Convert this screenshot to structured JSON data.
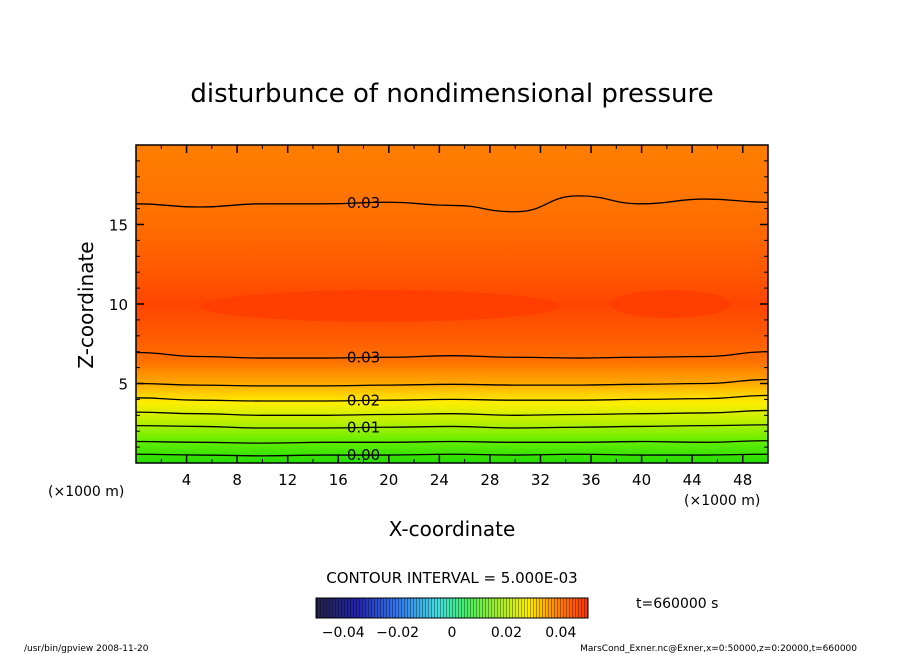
{
  "chart_data": {
    "type": "heatmap",
    "title": "disturbunce of nondimensional pressure",
    "xlabel": "X-coordinate",
    "ylabel": "Z-coordinate",
    "x_unit": "(×1000 m)",
    "y_unit": "(×1000 m)",
    "xlim": [
      0,
      50
    ],
    "ylim": [
      0,
      20
    ],
    "x_ticks": [
      4,
      8,
      12,
      16,
      20,
      24,
      28,
      32,
      36,
      40,
      44,
      48
    ],
    "y_ticks": [
      5,
      10,
      15
    ],
    "contour_interval_text": "CONTOUR INTERVAL = 5.000E-03",
    "time_text": "t=660000 s",
    "colorbar": {
      "ticks": [
        "−0.04",
        "−0.02",
        "0",
        "0.02",
        "0.04"
      ],
      "range": [
        -0.05,
        0.05
      ]
    },
    "contours": [
      {
        "level": 0.0,
        "label": "0.00",
        "z": [
          0.55,
          0.5,
          0.45,
          0.5,
          0.5,
          0.55,
          0.5,
          0.55,
          0.5,
          0.5,
          0.55
        ]
      },
      {
        "level": 0.005,
        "label": "",
        "z": [
          1.35,
          1.3,
          1.25,
          1.3,
          1.3,
          1.35,
          1.3,
          1.3,
          1.35,
          1.3,
          1.4
        ]
      },
      {
        "level": 0.01,
        "label": "0.01",
        "z": [
          2.35,
          2.3,
          2.2,
          2.2,
          2.25,
          2.3,
          2.2,
          2.25,
          2.3,
          2.35,
          2.4
        ]
      },
      {
        "level": 0.015,
        "label": "",
        "z": [
          3.2,
          3.1,
          3.0,
          3.0,
          3.05,
          3.1,
          3.0,
          3.05,
          3.1,
          3.15,
          3.3
        ]
      },
      {
        "level": 0.02,
        "label": "0.02",
        "z": [
          4.1,
          3.95,
          3.9,
          3.9,
          3.95,
          4.0,
          3.95,
          3.95,
          4.0,
          4.05,
          4.25
        ]
      },
      {
        "level": 0.025,
        "label": "",
        "z": [
          5.0,
          4.9,
          4.85,
          4.85,
          4.9,
          4.95,
          4.9,
          4.9,
          4.95,
          5.0,
          5.25
        ]
      },
      {
        "level": 0.03,
        "label": "0.03",
        "z": [
          6.95,
          6.7,
          6.6,
          6.6,
          6.65,
          6.75,
          6.65,
          6.6,
          6.65,
          6.7,
          7.0
        ]
      },
      {
        "level": 0.03,
        "label": "0.03",
        "z": [
          16.3,
          16.1,
          16.3,
          16.3,
          16.4,
          16.2,
          15.8,
          16.8,
          16.3,
          16.6,
          16.4
        ]
      }
    ]
  },
  "footer": {
    "left": "/usr/bin/gpview   2008-11-20",
    "right": "MarsCond_Exner.nc@Exner,x=0:50000,z=0:20000,t=660000"
  }
}
